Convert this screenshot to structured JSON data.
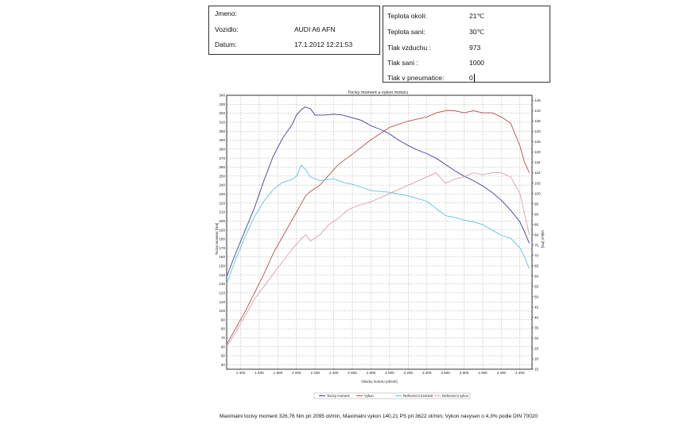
{
  "header_left": {
    "jmeno_label": "Jmeno:",
    "jmeno_value": "",
    "vozidlo_label": "Vozidlo:",
    "vozidlo_value": "AUDI A6 AFN",
    "datum_label": "Datum:",
    "datum_value": "17.1.2012 12:21:53"
  },
  "header_right": {
    "rows": [
      {
        "label": "Teplota okoli:",
        "value": "21℃"
      },
      {
        "label": "Teplota sani:",
        "value": "30℃"
      },
      {
        "label": "Tlak vzduchu :",
        "value": "973"
      },
      {
        "label": "Tlak sani :",
        "value": "1000"
      },
      {
        "label": "Tlak v pneumatice:",
        "value": "0"
      }
    ]
  },
  "chart_data": {
    "type": "line",
    "title": "Tocivy moment a vykon motoru",
    "xlabel": "Otacky motoru [ot/min]",
    "ylabel_left": "Tocivy moment [Nm]",
    "ylabel_right": "Vykon [PS]",
    "xlim": [
      1250,
      4530
    ],
    "ylim_left": [
      35,
      340
    ],
    "ylim_right": [
      15,
      147.5
    ],
    "x_ticks": [
      1400,
      1600,
      1800,
      2000,
      2200,
      2400,
      2600,
      2800,
      3000,
      3200,
      3400,
      3600,
      3800,
      4000,
      4200,
      4400
    ],
    "x_tick_labels": [
      "1 400",
      "1 600",
      "1 800",
      "2 000",
      "2 200",
      "2 400",
      "2 600",
      "2 800",
      "3 000",
      "3 200",
      "3 400",
      "3 600",
      "3 800",
      "4 000",
      "4 200",
      "4 400"
    ],
    "y_left_ticks": [
      40,
      50,
      60,
      70,
      80,
      90,
      100,
      110,
      120,
      130,
      140,
      150,
      160,
      170,
      180,
      190,
      200,
      210,
      220,
      230,
      240,
      250,
      260,
      270,
      280,
      290,
      300,
      310,
      320,
      330,
      340
    ],
    "y_right_ticks": [
      15,
      20,
      25,
      30,
      35,
      40,
      45,
      50,
      55,
      60,
      65,
      70,
      75,
      80,
      85,
      90,
      95,
      100,
      105,
      110,
      115,
      120,
      125,
      130,
      135,
      140,
      145
    ],
    "grid": true,
    "legend_position": "bottom",
    "series": [
      {
        "name": "Tocivy moment",
        "axis": "left",
        "color": "#3b3f9a",
        "x": [
          1250,
          1350,
          1450,
          1550,
          1650,
          1750,
          1850,
          1950,
          2000,
          2050,
          2095,
          2150,
          2200,
          2300,
          2400,
          2500,
          2600,
          2700,
          2800,
          2900,
          3000,
          3100,
          3200,
          3300,
          3400,
          3500,
          3600,
          3700,
          3800,
          3900,
          4000,
          4100,
          4200,
          4300,
          4400,
          4450,
          4500
        ],
        "y": [
          138,
          165,
          190,
          215,
          245,
          272,
          292,
          307,
          318,
          324,
          327,
          325,
          318,
          318,
          319,
          318,
          315,
          312,
          306,
          302,
          297,
          290,
          284,
          279,
          275,
          270,
          263,
          256,
          250,
          245,
          239,
          232,
          223,
          212,
          199,
          188,
          175
        ]
      },
      {
        "name": "Vykon",
        "axis": "right",
        "color": "#b95050",
        "x": [
          1250,
          1350,
          1450,
          1550,
          1650,
          1750,
          1850,
          1950,
          2050,
          2100,
          2150,
          2250,
          2350,
          2450,
          2600,
          2800,
          3000,
          3200,
          3400,
          3500,
          3622,
          3700,
          3800,
          3900,
          4000,
          4100,
          4200,
          4300,
          4400,
          4450,
          4500
        ],
        "y": [
          27,
          35,
          43,
          52,
          61,
          71,
          79,
          87,
          95,
          99,
          101,
          104,
          109,
          114,
          119,
          126,
          132,
          135,
          137,
          139,
          140.2,
          140,
          139,
          140,
          139,
          139,
          137,
          134,
          123,
          115,
          110
        ]
      },
      {
        "name": "Referencni moment",
        "axis": "left",
        "color": "#5ec5d6",
        "x": [
          1250,
          1350,
          1450,
          1550,
          1650,
          1750,
          1850,
          1950,
          2000,
          2050,
          2100,
          2150,
          2250,
          2400,
          2500,
          2600,
          2800,
          3000,
          3200,
          3300,
          3400,
          3500,
          3600,
          3700,
          3800,
          3900,
          4000,
          4100,
          4200,
          4300,
          4400,
          4450,
          4500
        ],
        "y": [
          130,
          158,
          183,
          205,
          222,
          235,
          243,
          246,
          250,
          262,
          257,
          249,
          245,
          247,
          243,
          241,
          234,
          232,
          228,
          225,
          222,
          214,
          206,
          204,
          201,
          199,
          196,
          190,
          184,
          181,
          170,
          160,
          147
        ]
      },
      {
        "name": "Referencni vykon",
        "axis": "right",
        "color": "#d9a0a6",
        "x": [
          1250,
          1350,
          1450,
          1550,
          1650,
          1750,
          1850,
          1950,
          2050,
          2100,
          2150,
          2250,
          2350,
          2450,
          2550,
          2650,
          2800,
          3000,
          3200,
          3400,
          3500,
          3600,
          3700,
          3800,
          3900,
          4000,
          4100,
          4200,
          4300,
          4400,
          4450,
          4500
        ],
        "y": [
          26,
          33,
          41,
          49,
          55,
          61,
          67,
          73,
          78,
          80,
          77,
          80,
          85,
          88,
          92,
          94,
          96,
          100,
          104,
          108,
          110,
          105,
          107,
          108,
          110,
          109,
          110,
          110,
          108,
          100,
          90,
          80
        ]
      }
    ]
  },
  "summary_text": "Maximalni tocivy moment 326,76 Nm pri 2095 ot/min,  Maximalni vykon 140,21 PS pri 3622 ot/min,  Vykon navysen o 4,3% podle DIN 70020"
}
